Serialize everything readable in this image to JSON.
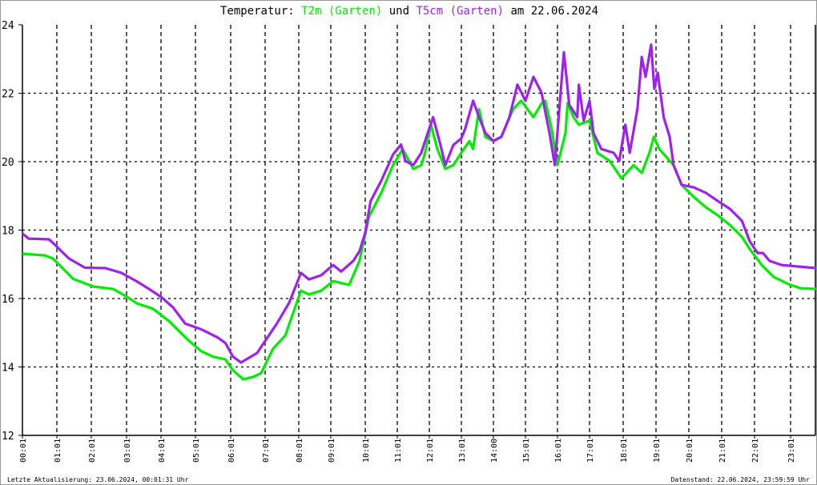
{
  "title": {
    "prefix": "Temperatur: ",
    "series1": "T2m (Garten)",
    "middle": " und ",
    "series2": "T5cm (Garten)",
    "suffix": " am 22.06.2024"
  },
  "footer": {
    "left": "Letzte Aktualisierung: 23.06.2024, 00:01:31 Uhr",
    "right": "Datenstand: 22.06.2024, 23:59:59 Uhr"
  },
  "chart_data": {
    "type": "line",
    "ylim": [
      12,
      24
    ],
    "y_ticks": [
      "12",
      "14",
      "16",
      "18",
      "20",
      "22",
      "24"
    ],
    "x_ticks": [
      "00:01",
      "01:01",
      "02:01",
      "03:01",
      "04:01",
      "05:01",
      "06:01",
      "07:01",
      "08:01",
      "09:01",
      "10:01",
      "11:01",
      "12:01",
      "13:01",
      "14:00",
      "15:01",
      "16:01",
      "17:01",
      "18:01",
      "19:01",
      "20:01",
      "21:01",
      "22:01",
      "23:01"
    ],
    "grid": true,
    "colors": {
      "T2m": "#00ee00",
      "T5cm": "#a020f0"
    },
    "series": [
      {
        "name": "T2m (Garten)",
        "color": "#00ee00",
        "points": [
          [
            "00:00",
            17.31
          ],
          [
            "00:39",
            17.26
          ],
          [
            "00:53",
            17.17
          ],
          [
            "01:07",
            16.94
          ],
          [
            "01:28",
            16.58
          ],
          [
            "02:03",
            16.35
          ],
          [
            "02:37",
            16.28
          ],
          [
            "02:57",
            16.09
          ],
          [
            "03:18",
            15.86
          ],
          [
            "03:46",
            15.7
          ],
          [
            "04:14",
            15.34
          ],
          [
            "04:49",
            14.76
          ],
          [
            "05:10",
            14.46
          ],
          [
            "05:30",
            14.3
          ],
          [
            "05:51",
            14.22
          ],
          [
            "06:04",
            13.9
          ],
          [
            "06:22",
            13.64
          ],
          [
            "06:39",
            13.71
          ],
          [
            "06:53",
            13.82
          ],
          [
            "07:14",
            14.53
          ],
          [
            "07:36",
            14.92
          ],
          [
            "07:50",
            15.58
          ],
          [
            "08:04",
            16.23
          ],
          [
            "08:19",
            16.12
          ],
          [
            "08:42",
            16.23
          ],
          [
            "09:04",
            16.51
          ],
          [
            "09:32",
            16.4
          ],
          [
            "09:50",
            17.1
          ],
          [
            "10:07",
            18.39
          ],
          [
            "10:30",
            19.09
          ],
          [
            "10:52",
            19.9
          ],
          [
            "11:10",
            20.37
          ],
          [
            "11:30",
            19.79
          ],
          [
            "11:45",
            19.9
          ],
          [
            "11:52",
            20.26
          ],
          [
            "12:03",
            21.08
          ],
          [
            "12:15",
            20.37
          ],
          [
            "12:30",
            19.79
          ],
          [
            "12:45",
            19.9
          ],
          [
            "13:00",
            20.26
          ],
          [
            "13:15",
            20.6
          ],
          [
            "13:22",
            20.37
          ],
          [
            "13:33",
            21.54
          ],
          [
            "13:45",
            20.72
          ],
          [
            "14:00",
            20.6
          ],
          [
            "14:15",
            20.73
          ],
          [
            "14:37",
            21.54
          ],
          [
            "14:52",
            21.78
          ],
          [
            "15:15",
            21.3
          ],
          [
            "15:30",
            21.7
          ],
          [
            "15:37",
            21.78
          ],
          [
            "15:49",
            20.96
          ],
          [
            "16:00",
            19.9
          ],
          [
            "16:15",
            20.84
          ],
          [
            "16:19",
            21.71
          ],
          [
            "16:30",
            21.3
          ],
          [
            "16:40",
            21.08
          ],
          [
            "17:00",
            21.2
          ],
          [
            "17:14",
            20.26
          ],
          [
            "17:36",
            20.02
          ],
          [
            "17:57",
            19.51
          ],
          [
            "18:19",
            19.9
          ],
          [
            "18:34",
            19.67
          ],
          [
            "18:48",
            20.26
          ],
          [
            "18:56",
            20.73
          ],
          [
            "19:06",
            20.37
          ],
          [
            "19:32",
            19.9
          ],
          [
            "19:47",
            19.32
          ],
          [
            "20:09",
            18.97
          ],
          [
            "20:31",
            18.67
          ],
          [
            "20:53",
            18.43
          ],
          [
            "21:15",
            18.15
          ],
          [
            "21:37",
            17.8
          ],
          [
            "21:51",
            17.45
          ],
          [
            "22:12",
            16.98
          ],
          [
            "22:32",
            16.63
          ],
          [
            "22:59",
            16.4
          ],
          [
            "23:19",
            16.3
          ],
          [
            "23:46",
            16.28
          ]
        ]
      },
      {
        "name": "T5cm (Garten)",
        "color": "#a020f0",
        "points": [
          [
            "00:00",
            17.9
          ],
          [
            "00:11",
            17.75
          ],
          [
            "00:46",
            17.73
          ],
          [
            "00:57",
            17.57
          ],
          [
            "01:07",
            17.4
          ],
          [
            "01:21",
            17.17
          ],
          [
            "01:49",
            16.9
          ],
          [
            "02:24",
            16.89
          ],
          [
            "02:51",
            16.75
          ],
          [
            "03:18",
            16.5
          ],
          [
            "03:39",
            16.28
          ],
          [
            "04:00",
            16.05
          ],
          [
            "04:21",
            15.74
          ],
          [
            "04:42",
            15.27
          ],
          [
            "05:10",
            15.1
          ],
          [
            "05:37",
            14.87
          ],
          [
            "05:51",
            14.7
          ],
          [
            "06:04",
            14.3
          ],
          [
            "06:18",
            14.13
          ],
          [
            "06:32",
            14.27
          ],
          [
            "06:46",
            14.41
          ],
          [
            "07:00",
            14.76
          ],
          [
            "07:21",
            15.27
          ],
          [
            "07:43",
            15.88
          ],
          [
            "08:04",
            16.75
          ],
          [
            "08:19",
            16.56
          ],
          [
            "08:42",
            16.68
          ],
          [
            "09:04",
            16.98
          ],
          [
            "09:18",
            16.79
          ],
          [
            "09:39",
            17.1
          ],
          [
            "09:50",
            17.38
          ],
          [
            "10:00",
            17.92
          ],
          [
            "10:10",
            18.85
          ],
          [
            "10:30",
            19.44
          ],
          [
            "10:52",
            20.21
          ],
          [
            "11:07",
            20.5
          ],
          [
            "11:15",
            20.02
          ],
          [
            "11:30",
            19.9
          ],
          [
            "11:45",
            20.26
          ],
          [
            "11:52",
            20.6
          ],
          [
            "12:07",
            21.3
          ],
          [
            "12:19",
            20.6
          ],
          [
            "12:30",
            19.9
          ],
          [
            "12:45",
            20.49
          ],
          [
            "13:00",
            20.68
          ],
          [
            "13:07",
            20.96
          ],
          [
            "13:22",
            21.78
          ],
          [
            "13:33",
            21.3
          ],
          [
            "13:45",
            20.84
          ],
          [
            "14:00",
            20.6
          ],
          [
            "14:15",
            20.73
          ],
          [
            "14:30",
            21.3
          ],
          [
            "14:45",
            22.25
          ],
          [
            "15:00",
            21.78
          ],
          [
            "15:15",
            22.48
          ],
          [
            "15:30",
            22.02
          ],
          [
            "15:45",
            20.84
          ],
          [
            "15:55",
            19.9
          ],
          [
            "16:07",
            22.25
          ],
          [
            "16:12",
            23.2
          ],
          [
            "16:22",
            21.66
          ],
          [
            "16:37",
            21.3
          ],
          [
            "16:40",
            22.25
          ],
          [
            "16:49",
            21.2
          ],
          [
            "17:00",
            21.78
          ],
          [
            "17:07",
            20.84
          ],
          [
            "17:21",
            20.37
          ],
          [
            "17:43",
            20.26
          ],
          [
            "17:53",
            20.02
          ],
          [
            "18:04",
            21.08
          ],
          [
            "18:12",
            20.26
          ],
          [
            "18:26",
            21.54
          ],
          [
            "18:34",
            23.06
          ],
          [
            "18:41",
            22.48
          ],
          [
            "18:51",
            23.42
          ],
          [
            "18:57",
            22.13
          ],
          [
            "19:03",
            22.6
          ],
          [
            "19:14",
            21.3
          ],
          [
            "19:25",
            20.72
          ],
          [
            "19:32",
            19.9
          ],
          [
            "19:47",
            19.32
          ],
          [
            "20:09",
            19.25
          ],
          [
            "20:31",
            19.09
          ],
          [
            "20:53",
            18.85
          ],
          [
            "21:15",
            18.62
          ],
          [
            "21:37",
            18.27
          ],
          [
            "21:51",
            17.68
          ],
          [
            "22:05",
            17.33
          ],
          [
            "22:14",
            17.33
          ],
          [
            "22:25",
            17.1
          ],
          [
            "22:45",
            16.98
          ],
          [
            "23:46",
            16.89
          ]
        ]
      }
    ]
  }
}
